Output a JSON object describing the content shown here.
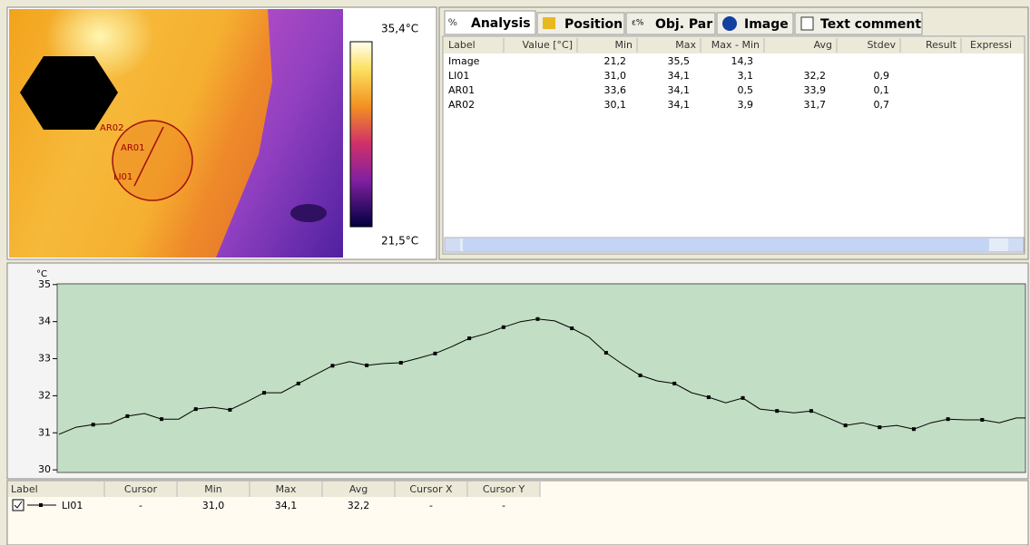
{
  "image": {
    "labels": [
      "AR02",
      "AR01",
      "LI01"
    ],
    "scale_max": "35,4°C",
    "scale_min": "21,5°C"
  },
  "tabs": [
    "Analysis",
    "Position",
    "Obj. Par",
    "Image",
    "Text comment"
  ],
  "results": {
    "columns": [
      "Label",
      "Value [°C]",
      "Min",
      "Max",
      "Max - Min",
      "Avg",
      "Stdev",
      "Result",
      "Expressi"
    ],
    "rows": [
      [
        "Image",
        null,
        "21,2",
        "35,5",
        "14,3",
        null,
        null,
        null,
        null
      ],
      [
        "LI01",
        null,
        "31,0",
        "34,1",
        "3,1",
        "32,2",
        "0,9",
        null,
        null
      ],
      [
        "AR01",
        null,
        "33,6",
        "34,1",
        "0,5",
        "33,9",
        "0,1",
        null,
        null
      ],
      [
        "AR02",
        null,
        "30,1",
        "34,1",
        "3,9",
        "31,7",
        "0,7",
        null,
        null
      ]
    ]
  },
  "profile": {
    "type": "line",
    "unit": "°C",
    "ylim": [
      29.93,
      35.02
    ],
    "yticks": [
      30,
      31,
      32,
      33,
      34,
      35
    ],
    "color": "#000000",
    "background": "#c2dec4",
    "values": [
      30.96,
      31.15,
      31.22,
      31.25,
      31.45,
      31.52,
      31.37,
      31.37,
      31.64,
      31.69,
      31.62,
      31.84,
      32.08,
      32.08,
      32.33,
      32.57,
      32.81,
      32.92,
      32.82,
      32.87,
      32.89,
      33.01,
      33.14,
      33.33,
      33.55,
      33.68,
      33.85,
      34.0,
      34.07,
      34.02,
      33.82,
      33.58,
      33.16,
      32.84,
      32.55,
      32.4,
      32.33,
      32.08,
      31.96,
      31.81,
      31.94,
      31.64,
      31.59,
      31.54,
      31.59,
      31.4,
      31.2,
      31.27,
      31.15,
      31.2,
      31.1,
      31.27,
      31.37,
      31.35,
      31.35,
      31.27,
      31.4
    ]
  },
  "legend_table": {
    "columns": [
      "Label",
      "Cursor",
      "Min",
      "Max",
      "Avg",
      "Cursor X",
      "Cursor Y"
    ],
    "rows": [
      [
        "LI01",
        "-",
        "31,0",
        "34,1",
        "32,2",
        "-",
        "-"
      ]
    ]
  }
}
